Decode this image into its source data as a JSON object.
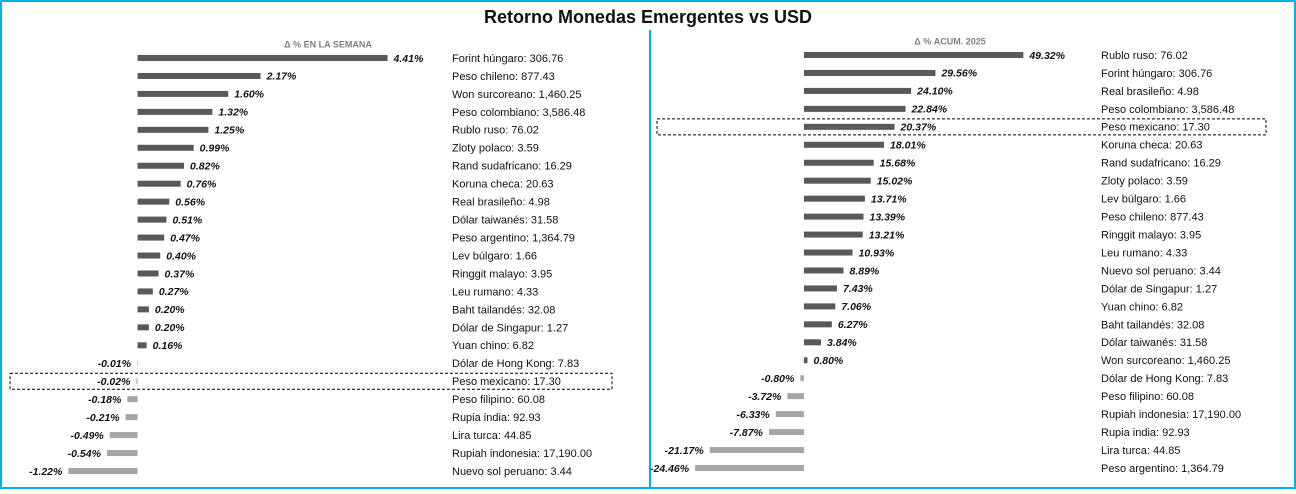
{
  "title": "Retorno Monedas Emergentes vs USD",
  "chart_data": [
    {
      "type": "barh",
      "subtitle": "Δ % EN LA SEMANA",
      "categories": [
        "Forint húngaro: 306.76",
        "Peso chileno: 877.43",
        "Won surcoreano: 1,460.25",
        "Peso colombiano: 3,586.48",
        "Rublo ruso: 76.02",
        "Zloty polaco: 3.59",
        "Rand sudafricano: 16.29",
        "Koruna checa: 20.63",
        "Real brasileño: 4.98",
        "Dólar taiwanés: 31.58",
        "Peso argentino: 1,364.79",
        "Lev búlgaro: 1.66",
        "Ringgit malayo: 3.95",
        "Leu rumano: 4.33",
        "Baht tailandés: 32.08",
        "Dólar de Singapur: 1.27",
        "Yuan chino: 6.82",
        "Dólar de Hong Kong: 7.83",
        "Peso mexicano: 17.30",
        "Peso filipino: 60.08",
        "Rupia india: 92.93",
        "Lira turca: 44.85",
        "Rupiah indonesia: 17,190.00",
        "Nuevo sol peruano: 3.44"
      ],
      "values": [
        4.41,
        2.17,
        1.6,
        1.32,
        1.25,
        0.99,
        0.82,
        0.76,
        0.56,
        0.51,
        0.47,
        0.4,
        0.37,
        0.27,
        0.2,
        0.2,
        0.16,
        -0.01,
        -0.02,
        -0.18,
        -0.21,
        -0.49,
        -0.54,
        -1.22
      ],
      "value_labels": [
        "4.41%",
        "2.17%",
        "1.60%",
        "1.32%",
        "1.25%",
        "0.99%",
        "0.82%",
        "0.76%",
        "0.56%",
        "0.51%",
        "0.47%",
        "0.40%",
        "0.37%",
        "0.27%",
        "0.20%",
        "0.20%",
        "0.16%",
        "-0.01%",
        "-0.02%",
        "-0.18%",
        "-0.21%",
        "-0.49%",
        "-0.54%",
        "-1.22%"
      ],
      "xlim": [
        -2.25,
        5.3
      ],
      "color": "#595959",
      "negative_color": "#a6a6a6",
      "highlight": 18
    },
    {
      "type": "barh",
      "subtitle": "Δ % ACUM. 2025",
      "categories": [
        "Rublo ruso: 76.02",
        "Forint húngaro: 306.76",
        "Real brasileño: 4.98",
        "Peso colombiano: 3,586.48",
        "Peso mexicano: 17.30",
        "Koruna checa: 20.63",
        "Rand sudafricano: 16.29",
        "Zloty polaco: 3.59",
        "Lev búlgaro: 1.66",
        "Peso chileno: 877.43",
        "Ringgit malayo: 3.95",
        "Leu rumano: 4.33",
        "Nuevo sol peruano: 3.44",
        "Dólar de Singapur: 1.27",
        "Yuan chino: 6.82",
        "Baht tailandés: 32.08",
        "Dólar taiwanés: 31.58",
        "Won surcoreano: 1,460.25",
        "Dólar de Hong Kong: 7.83",
        "Peso filipino: 60.08",
        "Rupiah indonesia: 17,190.00",
        "Rupia india: 92.93",
        "Lira turca: 44.85",
        "Peso argentino: 1,364.79"
      ],
      "values": [
        49.32,
        29.56,
        24.1,
        22.84,
        20.37,
        18.01,
        15.68,
        15.02,
        13.71,
        13.39,
        13.21,
        10.93,
        8.89,
        7.43,
        7.06,
        6.27,
        3.84,
        0.8,
        -0.8,
        -3.72,
        -6.33,
        -7.87,
        -21.17,
        -24.46
      ],
      "value_labels": [
        "49.32%",
        "29.56%",
        "24.10%",
        "22.84%",
        "20.37%",
        "18.01%",
        "15.68%",
        "15.02%",
        "13.71%",
        "13.39%",
        "13.21%",
        "10.93%",
        "8.89%",
        "7.43%",
        "7.06%",
        "6.27%",
        "3.84%",
        "0.80%",
        "-0.80%",
        "-3.72%",
        "-6.33%",
        "-7.87%",
        "-21.17%",
        "-24.46%"
      ],
      "xlim": [
        -32.8,
        65.2
      ],
      "color": "#595959",
      "negative_color": "#a6a6a6",
      "highlight": 4
    }
  ]
}
